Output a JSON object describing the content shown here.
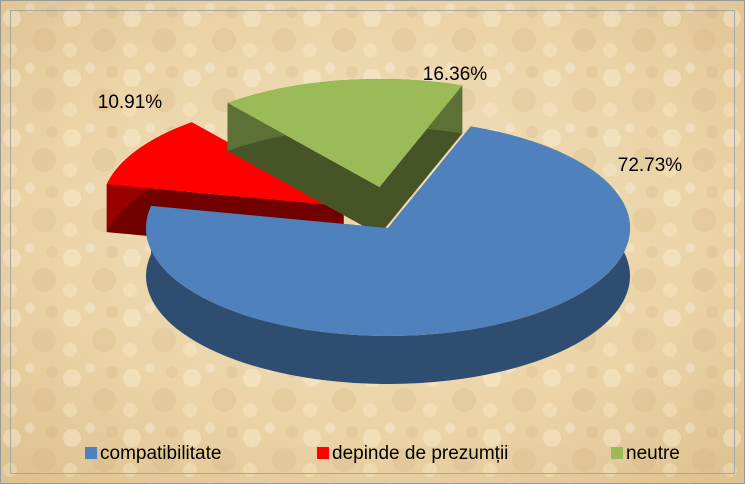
{
  "chart_data": {
    "type": "pie",
    "categories": [
      "compatibilitate",
      "depinde de prezumții",
      "neutre"
    ],
    "values": [
      72.73,
      10.91,
      16.36
    ],
    "value_labels": [
      "72.73%",
      "10.91%",
      "16.36%"
    ],
    "colors": [
      "#4f81bd",
      "#ff0000",
      "#9bbb59"
    ],
    "legend": "bottom"
  }
}
